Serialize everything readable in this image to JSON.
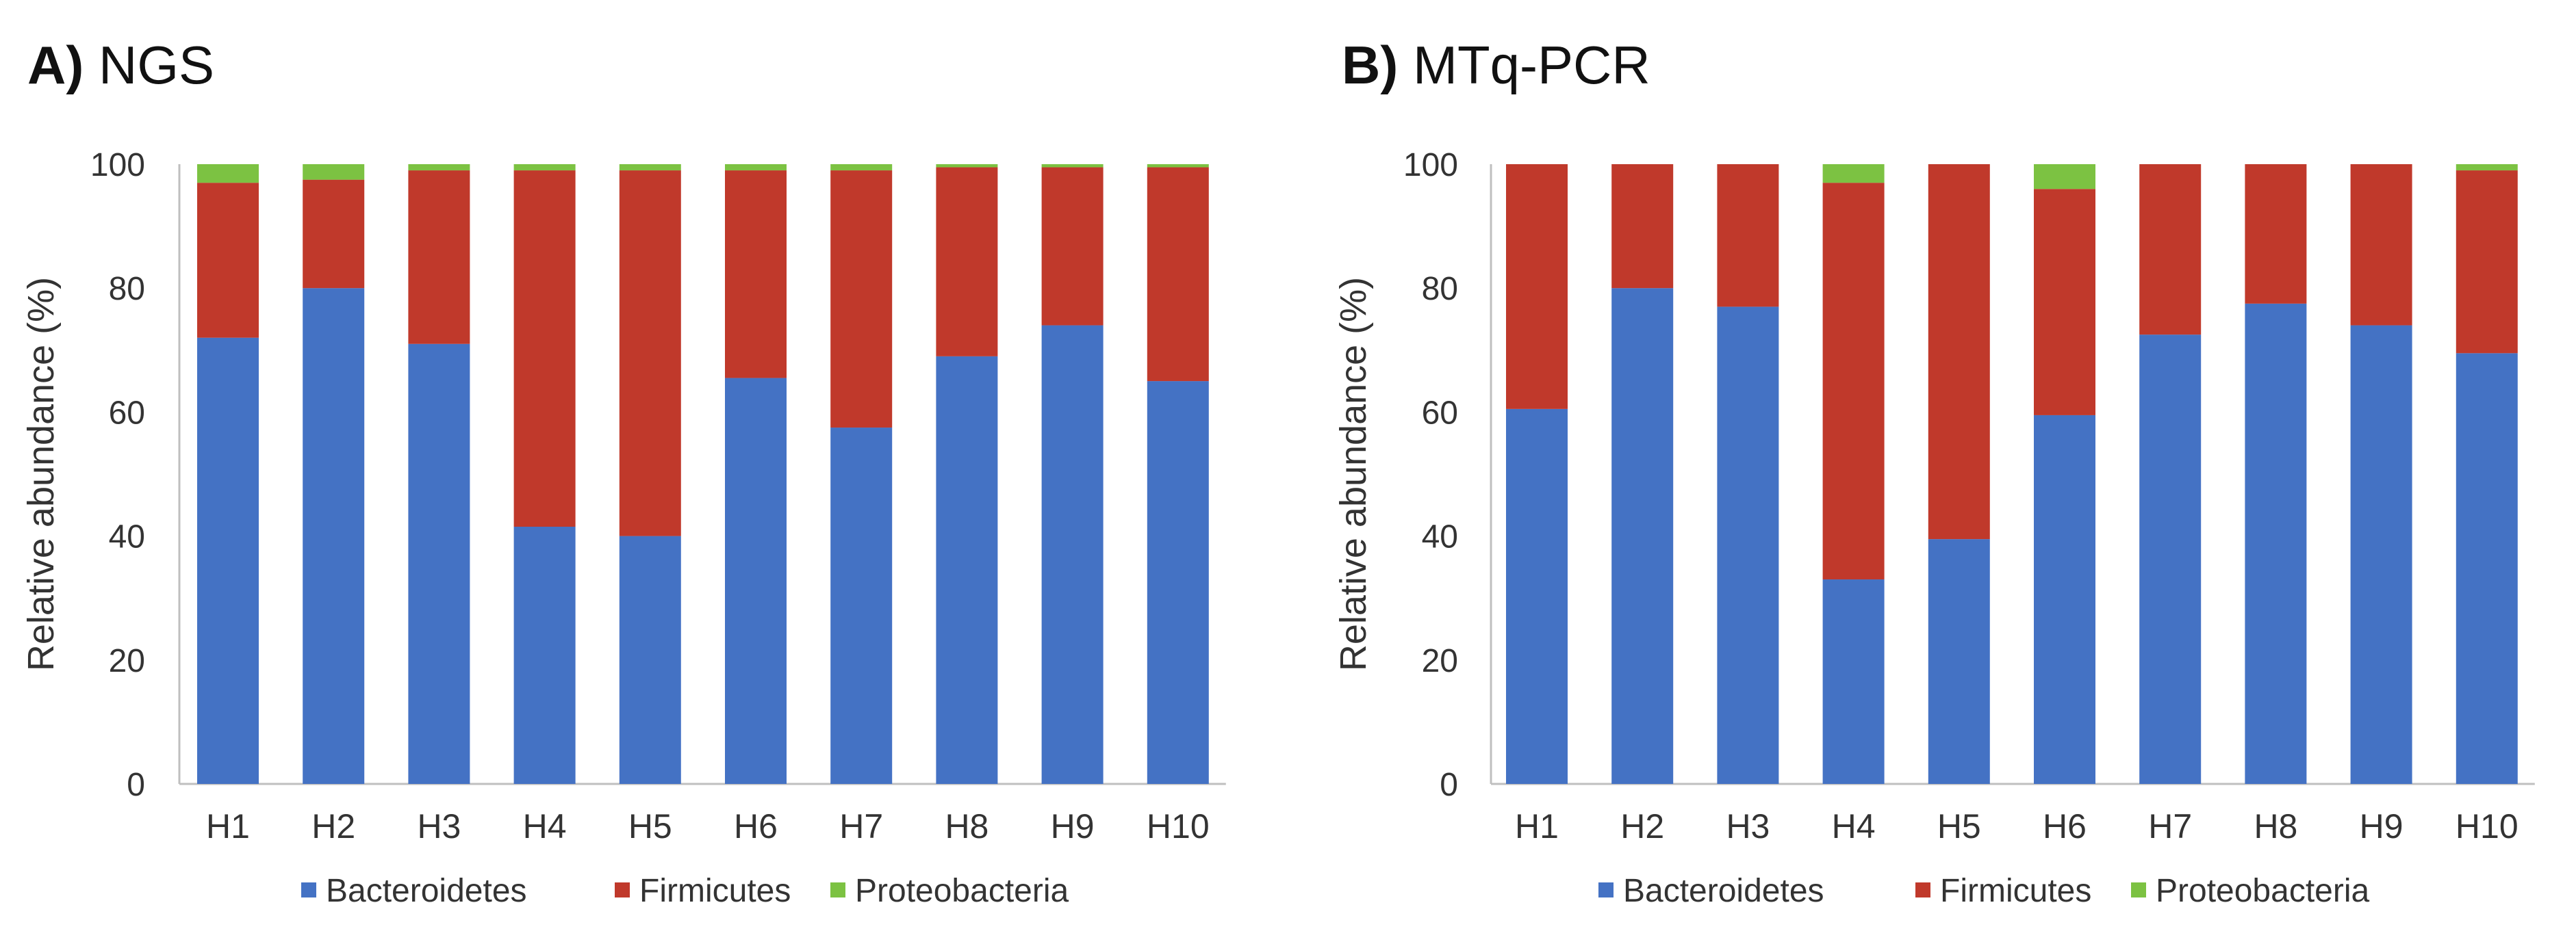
{
  "colors": {
    "bacteroidetes": "#4472c4",
    "firmicutes": "#c0392b",
    "proteobacteria": "#7cc242",
    "axis": "#bfbfbf",
    "text": "#333333",
    "title": "#111111"
  },
  "chart_data": [
    {
      "type": "bar",
      "stacked": true,
      "panel_letter": "A)",
      "title": "NGS",
      "ylabel": "Relative abundance (%)",
      "xlabel": "",
      "ylim": [
        0,
        100
      ],
      "yticks": [
        "0",
        "20",
        "40",
        "60",
        "80",
        "100"
      ],
      "grid": false,
      "legend_position": "bottom",
      "categories": [
        "H1",
        "H2",
        "H3",
        "H4",
        "H5",
        "H6",
        "H7",
        "H8",
        "H9",
        "H10"
      ],
      "series": [
        {
          "name": "Bacteroidetes",
          "color_key": "bacteroidetes",
          "values": [
            72,
            80,
            71,
            41.5,
            40,
            65.5,
            57.5,
            69,
            74,
            65
          ]
        },
        {
          "name": "Firmicutes",
          "color_key": "firmicutes",
          "values": [
            25,
            17.5,
            28,
            57.5,
            59,
            33.5,
            41.5,
            30.5,
            25.5,
            34.5
          ]
        },
        {
          "name": "Proteobacteria",
          "color_key": "proteobacteria",
          "values": [
            3,
            2.5,
            1,
            1,
            1,
            1,
            1,
            0.5,
            0.5,
            0.5
          ]
        }
      ]
    },
    {
      "type": "bar",
      "stacked": true,
      "panel_letter": "B)",
      "title": "MTq-PCR",
      "ylabel": "Relative abundance (%)",
      "xlabel": "",
      "ylim": [
        0,
        100
      ],
      "yticks": [
        "0",
        "20",
        "40",
        "60",
        "80",
        "100"
      ],
      "grid": false,
      "legend_position": "bottom",
      "categories": [
        "H1",
        "H2",
        "H3",
        "H4",
        "H5",
        "H6",
        "H7",
        "H8",
        "H9",
        "H10"
      ],
      "series": [
        {
          "name": "Bacteroidetes",
          "color_key": "bacteroidetes",
          "values": [
            60.5,
            80,
            77,
            33,
            39.5,
            59.5,
            72.5,
            77.5,
            74,
            69.5
          ]
        },
        {
          "name": "Firmicutes",
          "color_key": "firmicutes",
          "values": [
            39.5,
            20,
            23,
            64,
            60.5,
            36.5,
            27.5,
            22.5,
            26,
            29.5
          ]
        },
        {
          "name": "Proteobacteria",
          "color_key": "proteobacteria",
          "values": [
            0,
            0,
            0,
            3,
            0,
            4,
            0,
            0,
            0,
            1
          ]
        }
      ]
    }
  ]
}
